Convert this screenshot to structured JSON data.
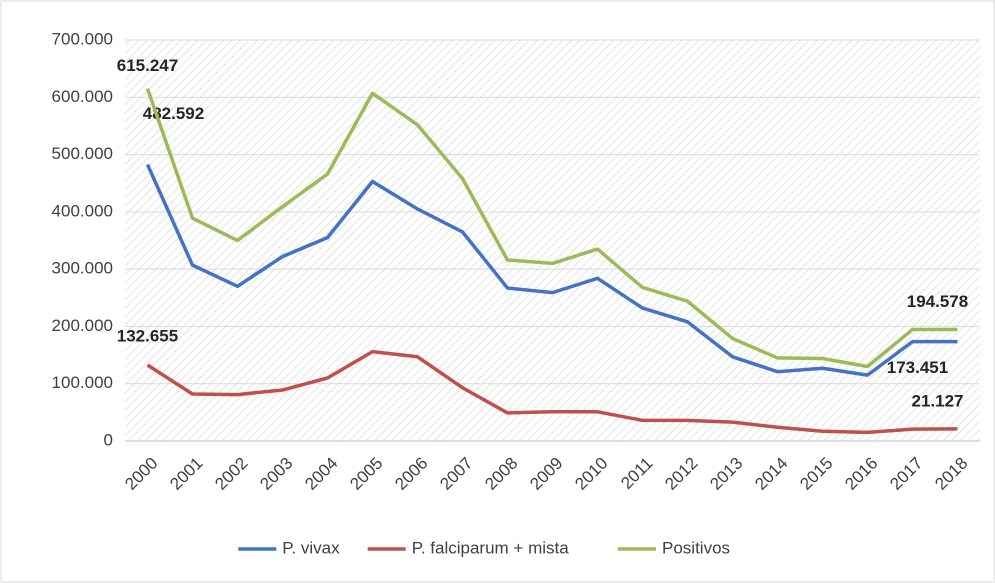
{
  "chart_data": {
    "type": "line",
    "categories": [
      "2000",
      "2001",
      "2002",
      "2003",
      "2004",
      "2005",
      "2006",
      "2007",
      "2008",
      "2009",
      "2010",
      "2011",
      "2012",
      "2013",
      "2014",
      "2015",
      "2016",
      "2017",
      "2018"
    ],
    "series": [
      {
        "name": "P. vivax",
        "color": "#4472c4",
        "values": [
          482592,
          307000,
          270000,
          322000,
          355000,
          453000,
          405000,
          365000,
          267000,
          259000,
          284000,
          232000,
          208000,
          147000,
          121000,
          127000,
          115000,
          173451,
          173451
        ],
        "value_labels": [
          "482.592",
          null,
          null,
          null,
          null,
          null,
          null,
          null,
          null,
          null,
          null,
          null,
          null,
          null,
          null,
          null,
          null,
          null,
          "173.451"
        ]
      },
      {
        "name": "P. falciparum + mista",
        "color": "#c0504d",
        "values": [
          132655,
          82000,
          81000,
          89000,
          110000,
          156000,
          147000,
          93000,
          49000,
          51000,
          51000,
          36000,
          36000,
          33000,
          24000,
          17000,
          15000,
          20800,
          21127
        ],
        "value_labels": [
          "132.655",
          null,
          null,
          null,
          null,
          null,
          null,
          null,
          null,
          null,
          null,
          null,
          null,
          null,
          null,
          null,
          null,
          null,
          "21.127"
        ]
      },
      {
        "name": "Positivos",
        "color": "#9bbb59",
        "values": [
          615247,
          389000,
          350000,
          409000,
          466000,
          607000,
          552000,
          458000,
          316000,
          310000,
          335000,
          268000,
          244000,
          179000,
          145000,
          144000,
          130000,
          194578,
          194578
        ],
        "value_labels": [
          "615.247",
          null,
          null,
          null,
          null,
          null,
          null,
          null,
          null,
          null,
          null,
          null,
          null,
          null,
          null,
          null,
          null,
          null,
          "194.578"
        ]
      }
    ],
    "ylim": [
      0,
      700000
    ],
    "yticks": [
      0,
      {
        "value": 100000,
        "label": "100.000"
      },
      {
        "value": 200000,
        "label": "200.000"
      },
      {
        "value": 300000,
        "label": "300.000"
      },
      {
        "value": 400000,
        "label": "400.000"
      },
      {
        "value": 500000,
        "label": "500.000"
      },
      {
        "value": 600000,
        "label": "600.000"
      },
      {
        "value": 700000,
        "label": "700.000"
      }
    ],
    "grid": true,
    "legend": "bottom"
  }
}
